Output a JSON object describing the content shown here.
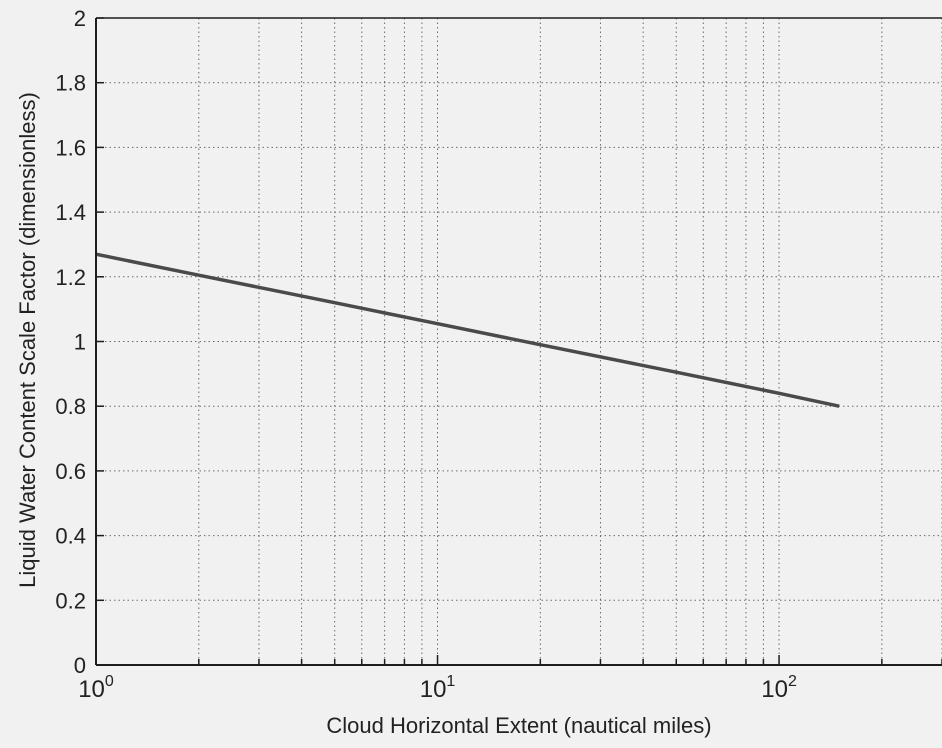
{
  "chart_data": {
    "type": "line",
    "title": "",
    "xlabel": "Cloud Horizontal Extent (nautical miles)",
    "ylabel": "Liquid Water Content Scale Factor (dimensionless)",
    "x_scale": "log",
    "xlim": [
      1,
      300
    ],
    "ylim": [
      0,
      2
    ],
    "grid": true,
    "x_ticks": [
      {
        "value": 1,
        "base": "10",
        "exp": "0"
      },
      {
        "value": 10,
        "base": "10",
        "exp": "1"
      },
      {
        "value": 100,
        "base": "10",
        "exp": "2"
      }
    ],
    "y_ticks": [
      0,
      0.2,
      0.4,
      0.6,
      0.8,
      1,
      1.2,
      1.4,
      1.6,
      1.8,
      2
    ],
    "y_tick_labels": [
      "0",
      "0.2",
      "0.4",
      "0.6",
      "0.8",
      "1",
      "1.2",
      "1.4",
      "1.6",
      "1.8",
      "2"
    ],
    "series": [
      {
        "x": [
          1,
          2,
          5,
          10,
          20,
          50,
          100,
          150
        ],
        "y": [
          1.27,
          1.205,
          1.12,
          1.055,
          0.99,
          0.905,
          0.84,
          0.8
        ]
      }
    ],
    "colors": {
      "line": "#4a4a4a",
      "grid": "#6a6a6a",
      "axis": "#1e1e1e",
      "background": "#f1f1f1"
    }
  }
}
